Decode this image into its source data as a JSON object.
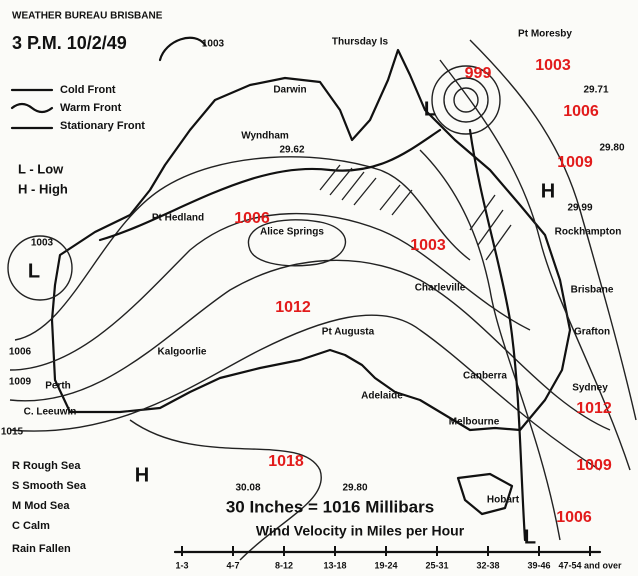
{
  "header": {
    "office": "WEATHER BUREAU BRISBANE",
    "time": "3 P.M. 10/2/49"
  },
  "legend": [
    "Cold Front",
    "Warm Front",
    "Stationary Front",
    "L - Low",
    "H - High"
  ],
  "places": [
    "Thursday Is",
    "Pt Moresby",
    "Darwin",
    "Wyndham",
    "Pt Hedland",
    "Alice Springs",
    "Charleville",
    "Rockhampton",
    "Brisbane",
    "Grafton",
    "Sydney",
    "Canberra",
    "Melbourne",
    "Hobart",
    "Perth",
    "C. Leeuwin",
    "Kalgoorlie",
    "Pt Augusta",
    "Adelaide"
  ],
  "isobar_labels": [
    "999",
    "1003",
    "1006",
    "1009",
    "1006",
    "1003",
    "1012",
    "1018",
    "1012",
    "1009",
    "1006"
  ],
  "station_readings": [
    "1003",
    "29.62",
    "1003",
    "1006",
    "1009",
    "1015",
    "30.08",
    "29.80",
    "29.71",
    "29.80",
    "29.99"
  ],
  "pressure_centres": [
    "L",
    "L",
    "H",
    "L",
    "H"
  ],
  "sea_state": [
    "R Rough Sea",
    "S Smooth Sea",
    "M Mod Sea",
    "C Calm",
    "Rain Fallen"
  ],
  "conversion": "30 Inches = 1016 Millibars",
  "wind_scale": {
    "title": "Wind Velocity in Miles per Hour",
    "steps": [
      "1-3",
      "4-7",
      "8-12",
      "13-18",
      "19-24",
      "25-31",
      "32-38",
      "39-46",
      "47-54 and over"
    ]
  }
}
